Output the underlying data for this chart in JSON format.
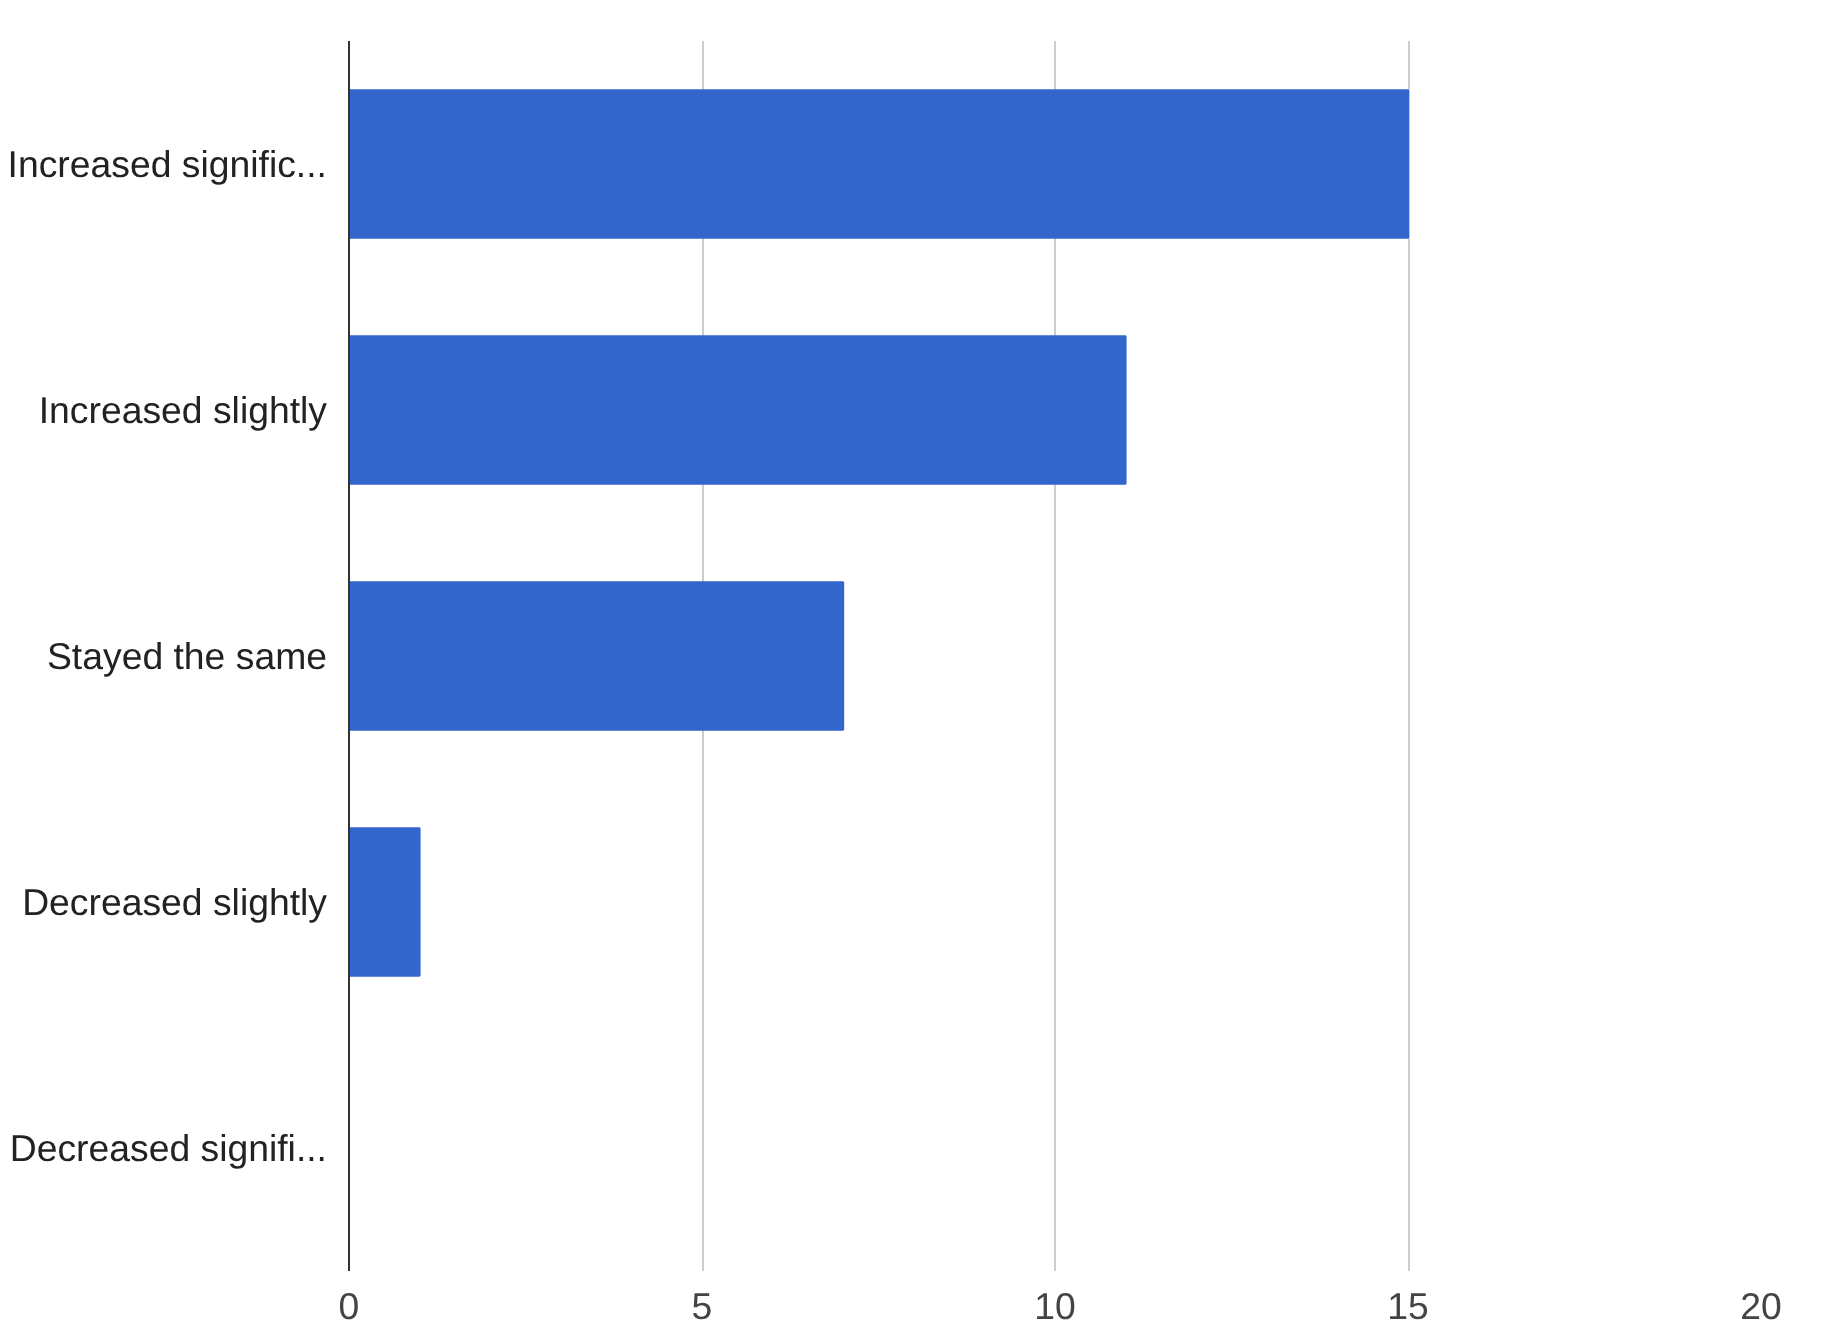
{
  "chart_data": {
    "type": "bar",
    "orientation": "horizontal",
    "categories": [
      "Increased signific...",
      "Increased slightly",
      "Stayed the same",
      "Decreased slightly",
      "Decreased signifi..."
    ],
    "values": [
      15,
      11,
      7,
      1,
      0
    ],
    "color": "#3366cc",
    "xlim": [
      0,
      20
    ],
    "xticks": [
      0,
      5,
      10,
      15,
      20
    ],
    "grid": "x"
  }
}
